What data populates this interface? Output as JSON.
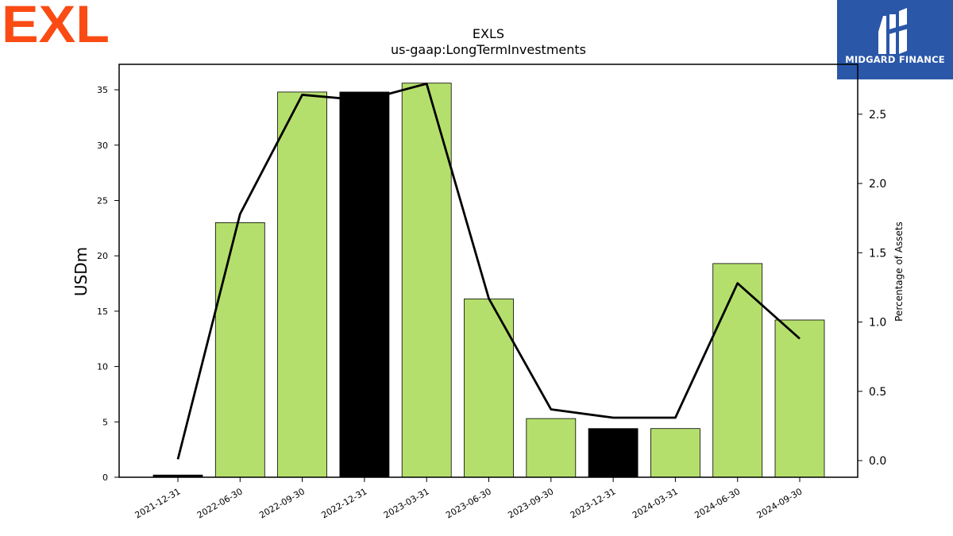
{
  "logos": {
    "left": "EXL",
    "right": "MIDGARD FINANCE"
  },
  "colors": {
    "bar_default": "#b5df6c",
    "bar_highlight": "#000000",
    "line": "#000000",
    "logo_left": "#fa4b14",
    "logo_right_bg": "#2a57a8"
  },
  "chart_data": {
    "type": "bar",
    "title": "EXLS",
    "subtitle": "us-gaap:LongTermInvestments",
    "ylabel": "USDm",
    "y2label": "Percentage of Assets",
    "categories": [
      "2021-12-31",
      "2022-06-30",
      "2022-09-30",
      "2022-12-31",
      "2023-03-31",
      "2023-06-30",
      "2023-09-30",
      "2023-12-31",
      "2024-03-31",
      "2024-06-30",
      "2024-09-30"
    ],
    "series": [
      {
        "axis": "left",
        "type": "bar",
        "values": [
          0.2,
          23.0,
          34.8,
          34.8,
          35.6,
          16.1,
          5.3,
          4.4,
          4.4,
          19.3,
          14.2
        ],
        "highlight": [
          true,
          false,
          false,
          true,
          false,
          false,
          false,
          true,
          false,
          false,
          false
        ]
      },
      {
        "axis": "right",
        "type": "line",
        "values": [
          0.01,
          1.78,
          2.64,
          2.6,
          2.72,
          1.17,
          0.37,
          0.31,
          0.31,
          1.28,
          0.88
        ]
      }
    ],
    "ylim": [
      0,
      37.3
    ],
    "yticks": [
      0,
      5,
      10,
      15,
      20,
      25,
      30,
      35
    ],
    "y2lim": [
      -0.12,
      2.86
    ],
    "y2ticks": [
      "0.0",
      "0.5",
      "1.0",
      "1.5",
      "2.0",
      "2.5"
    ],
    "grid": false,
    "legend": "none"
  }
}
